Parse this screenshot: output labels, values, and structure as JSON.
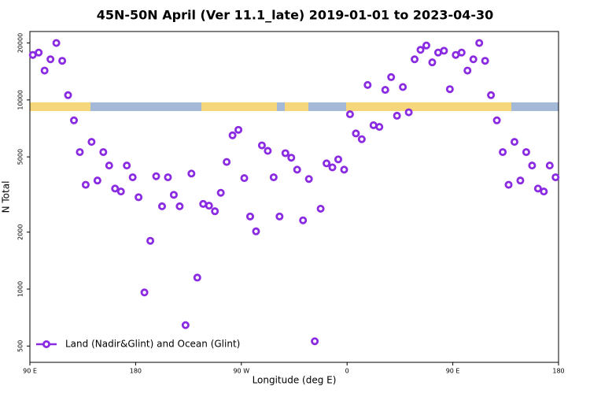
{
  "chart_data": {
    "type": "scatter",
    "title": "45N-50N April (Ver 11.1_late)   2019-01-01 to 2023-04-30",
    "xlabel": "Longitude (deg E)",
    "ylabel": "N Total",
    "series": [
      {
        "name": "Land (Nadir&Glint) and Ocean (Glint)",
        "color": "#8a2be2",
        "x": [
          92.5,
          97.5,
          102.5,
          107.5,
          112.5,
          117.5,
          122.5,
          127.5,
          132.5,
          137.5,
          142.5,
          147.5,
          152.5,
          157.5,
          162.5,
          167.5,
          172.5,
          177.5,
          182.5,
          187.5,
          192.5,
          197.5,
          202.5,
          207.5,
          212.5,
          217.5,
          222.5,
          227.5,
          232.5,
          237.5,
          242.5,
          247.5,
          252.5,
          257.5,
          262.5,
          267.5,
          272.5,
          277.5,
          282.5,
          287.5,
          292.5,
          297.5,
          302.5,
          307.5,
          312.5,
          317.5,
          322.5,
          327.5,
          332.5,
          337.5,
          342.5,
          347.5,
          352.5,
          357.5,
          362.5,
          367.5,
          372.5,
          377.5,
          382.5,
          387.5,
          392.5,
          397.5,
          402.5,
          407.5,
          412.5,
          417.5,
          422.5,
          427.5,
          432.5,
          437.5,
          442.5,
          447.5,
          452.5,
          457.5,
          462.5,
          467.5,
          472.5,
          477.5,
          482.5,
          487.5,
          492.5,
          497.5,
          502.5,
          507.5,
          512.5,
          517.5,
          522.5,
          527.5,
          532.5,
          537.5
        ],
        "values": [
          17300,
          17800,
          14300,
          16400,
          20000,
          16100,
          10600,
          7800,
          5300,
          3560,
          6000,
          3750,
          5300,
          4500,
          3400,
          3280,
          4500,
          3900,
          3060,
          960,
          1800,
          3950,
          2740,
          3900,
          3150,
          2740,
          645,
          4080,
          1150,
          2820,
          2760,
          2580,
          3230,
          4700,
          6500,
          6950,
          3860,
          2420,
          2020,
          5750,
          5380,
          3900,
          2420,
          5230,
          4950,
          4280,
          2310,
          3820,
          530,
          2660,
          4620,
          4400,
          4850,
          4280,
          8400,
          6650,
          6200,
          12000,
          7350,
          7200,
          11300,
          13200,
          8250,
          11700,
          8600,
          16400,
          18400,
          19400,
          15800,
          17800,
          18200,
          11400,
          17300,
          17800,
          14300,
          16400,
          20000,
          16100,
          10600,
          7800,
          5300,
          3560,
          6000,
          3750,
          5300,
          4500,
          3400,
          3280,
          4500,
          3900
        ]
      }
    ],
    "xlim": [
      90,
      540
    ],
    "xticks": [
      {
        "value": 90,
        "label": "90 E"
      },
      {
        "value": 180,
        "label": "180"
      },
      {
        "value": 270,
        "label": "90 W"
      },
      {
        "value": 360,
        "label": "0"
      },
      {
        "value": 450,
        "label": "90 E"
      },
      {
        "value": 540,
        "label": "180"
      }
    ],
    "ylim": [
      410,
      23000
    ],
    "yticks": [
      500,
      1000,
      2000,
      5000,
      10000,
      20000
    ],
    "log_y": true,
    "legend": "lower left"
  }
}
